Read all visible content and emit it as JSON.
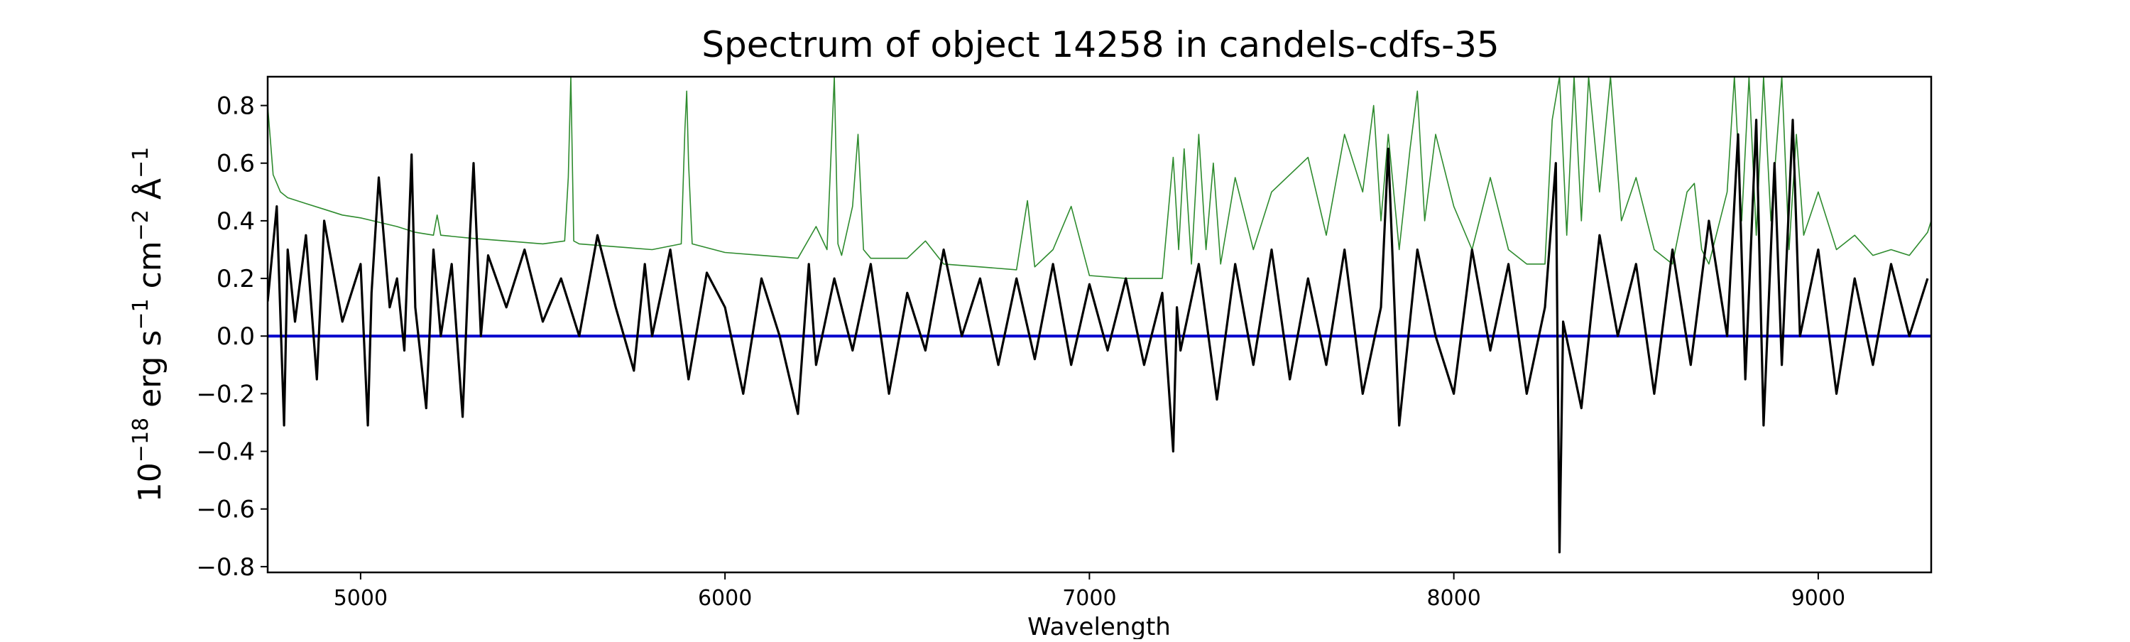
{
  "chart_data": {
    "type": "line",
    "title": "Spectrum of object 14258 in candels-cdfs-35",
    "xlabel": "Wavelength",
    "ylabel_parts": [
      "10",
      "−18",
      " erg s",
      "−1",
      " cm",
      "−2",
      " Å",
      "−1"
    ],
    "xlim": [
      4745,
      9310
    ],
    "ylim": [
      -0.82,
      0.9
    ],
    "xticks": [
      5000,
      6000,
      7000,
      8000,
      9000
    ],
    "xtick_labels": [
      "5000",
      "6000",
      "7000",
      "8000",
      "9000"
    ],
    "yticks": [
      -0.8,
      -0.6,
      -0.4,
      -0.2,
      0.0,
      0.2,
      0.4,
      0.6,
      0.8
    ],
    "ytick_labels": [
      "−0.8",
      "−0.6",
      "−0.4",
      "−0.2",
      "0.0",
      "0.2",
      "0.4",
      "0.6",
      "0.8"
    ],
    "grid": false,
    "legend": "none",
    "series": [
      {
        "role": "zero-line",
        "color": "#0000cc",
        "x": [
          4745,
          9310
        ],
        "y": [
          0.0,
          0.0
        ]
      },
      {
        "role": "noise-spectrum",
        "color": "#2e8b2e",
        "x": [
          4745,
          4760,
          4780,
          4800,
          4850,
          4900,
          4950,
          5000,
          5100,
          5150,
          5200,
          5210,
          5220,
          5300,
          5400,
          5500,
          5560,
          5570,
          5577,
          5585,
          5600,
          5700,
          5800,
          5880,
          5890,
          5895,
          5900,
          5910,
          6000,
          6100,
          6200,
          6250,
          6280,
          6300,
          6310,
          6320,
          6350,
          6365,
          6380,
          6400,
          6500,
          6550,
          6600,
          6700,
          6800,
          6830,
          6850,
          6900,
          6950,
          7000,
          7100,
          7200,
          7230,
          7245,
          7260,
          7280,
          7300,
          7320,
          7340,
          7360,
          7400,
          7450,
          7500,
          7600,
          7650,
          7700,
          7750,
          7780,
          7800,
          7820,
          7850,
          7880,
          7900,
          7920,
          7950,
          8000,
          8050,
          8100,
          8150,
          8200,
          8250,
          8270,
          8290,
          8310,
          8330,
          8350,
          8370,
          8400,
          8430,
          8460,
          8500,
          8550,
          8600,
          8640,
          8660,
          8680,
          8700,
          8750,
          8770,
          8790,
          8810,
          8830,
          8850,
          8870,
          8900,
          8920,
          8940,
          8960,
          9000,
          9050,
          9100,
          9150,
          9200,
          9250,
          9300,
          9310
        ],
        "y": [
          0.8,
          0.56,
          0.5,
          0.48,
          0.46,
          0.44,
          0.42,
          0.41,
          0.38,
          0.36,
          0.35,
          0.42,
          0.35,
          0.34,
          0.33,
          0.32,
          0.33,
          0.55,
          0.9,
          0.33,
          0.32,
          0.31,
          0.3,
          0.32,
          0.72,
          0.85,
          0.6,
          0.32,
          0.29,
          0.28,
          0.27,
          0.38,
          0.3,
          0.9,
          0.32,
          0.28,
          0.45,
          0.7,
          0.3,
          0.27,
          0.27,
          0.33,
          0.25,
          0.24,
          0.23,
          0.47,
          0.24,
          0.3,
          0.45,
          0.21,
          0.2,
          0.2,
          0.62,
          0.3,
          0.65,
          0.25,
          0.7,
          0.3,
          0.6,
          0.25,
          0.55,
          0.3,
          0.5,
          0.62,
          0.35,
          0.7,
          0.5,
          0.8,
          0.4,
          0.7,
          0.3,
          0.65,
          0.85,
          0.4,
          0.7,
          0.45,
          0.3,
          0.55,
          0.3,
          0.25,
          0.25,
          0.75,
          0.9,
          0.35,
          0.9,
          0.4,
          0.9,
          0.5,
          0.9,
          0.4,
          0.55,
          0.3,
          0.25,
          0.5,
          0.53,
          0.3,
          0.25,
          0.5,
          0.9,
          0.4,
          0.9,
          0.35,
          0.9,
          0.4,
          0.9,
          0.3,
          0.7,
          0.35,
          0.5,
          0.3,
          0.35,
          0.28,
          0.3,
          0.28,
          0.36,
          0.4
        ]
      },
      {
        "role": "flux-spectrum",
        "color": "#000000",
        "x": [
          4745,
          4770,
          4790,
          4800,
          4820,
          4850,
          4880,
          4900,
          4950,
          5000,
          5020,
          5030,
          5050,
          5080,
          5100,
          5120,
          5140,
          5150,
          5180,
          5200,
          5220,
          5250,
          5280,
          5300,
          5310,
          5330,
          5350,
          5400,
          5450,
          5500,
          5550,
          5600,
          5650,
          5700,
          5750,
          5780,
          5800,
          5850,
          5900,
          5950,
          6000,
          6050,
          6100,
          6150,
          6200,
          6230,
          6250,
          6300,
          6350,
          6400,
          6450,
          6500,
          6550,
          6600,
          6650,
          6700,
          6750,
          6800,
          6850,
          6900,
          6950,
          7000,
          7050,
          7100,
          7150,
          7200,
          7230,
          7240,
          7250,
          7300,
          7350,
          7400,
          7450,
          7500,
          7550,
          7600,
          7650,
          7700,
          7750,
          7800,
          7820,
          7850,
          7900,
          7950,
          8000,
          8050,
          8100,
          8150,
          8200,
          8250,
          8280,
          8290,
          8300,
          8350,
          8400,
          8450,
          8500,
          8550,
          8600,
          8650,
          8700,
          8750,
          8780,
          8800,
          8830,
          8850,
          8880,
          8900,
          8930,
          8950,
          9000,
          9050,
          9100,
          9150,
          9200,
          9250,
          9300
        ],
        "y": [
          0.12,
          0.45,
          -0.31,
          0.3,
          0.05,
          0.35,
          -0.15,
          0.4,
          0.05,
          0.25,
          -0.31,
          0.15,
          0.55,
          0.1,
          0.2,
          -0.05,
          0.63,
          0.1,
          -0.25,
          0.3,
          0.0,
          0.25,
          -0.28,
          0.35,
          0.6,
          0.0,
          0.28,
          0.1,
          0.3,
          0.05,
          0.2,
          0.0,
          0.35,
          0.1,
          -0.12,
          0.25,
          0.0,
          0.3,
          -0.15,
          0.22,
          0.1,
          -0.2,
          0.2,
          0.0,
          -0.27,
          0.25,
          -0.1,
          0.2,
          -0.05,
          0.25,
          -0.2,
          0.15,
          -0.05,
          0.3,
          0.0,
          0.2,
          -0.1,
          0.2,
          -0.08,
          0.25,
          -0.1,
          0.18,
          -0.05,
          0.2,
          -0.1,
          0.15,
          -0.4,
          0.1,
          -0.05,
          0.25,
          -0.22,
          0.25,
          -0.1,
          0.3,
          -0.15,
          0.2,
          -0.1,
          0.3,
          -0.2,
          0.1,
          0.65,
          -0.31,
          0.3,
          0.0,
          -0.2,
          0.3,
          -0.05,
          0.25,
          -0.2,
          0.1,
          0.6,
          -0.75,
          0.05,
          -0.25,
          0.35,
          0.0,
          0.25,
          -0.2,
          0.3,
          -0.1,
          0.4,
          0.0,
          0.7,
          -0.15,
          0.75,
          -0.31,
          0.6,
          -0.1,
          0.75,
          0.0,
          0.3,
          -0.2,
          0.2,
          -0.1,
          0.25,
          0.0,
          0.2
        ]
      }
    ]
  }
}
